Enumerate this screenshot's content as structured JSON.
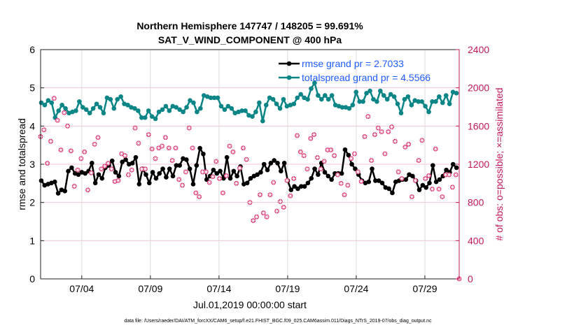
{
  "chart_data": {
    "type": "line",
    "title": [
      "Northern Hemisphere 147747 / 148205 = 99.691%",
      "SAT_V_WIND_COMPONENT @ 400 hPa"
    ],
    "xlabel": "Jul.01,2019 00:00:00 start",
    "ylabel": "rmse and totalspread",
    "ylabel_right": "# of obs: o=possible; ×=assimilated",
    "xlim_days": [
      0,
      30.5
    ],
    "ylim": [
      0,
      6
    ],
    "ylim_right": [
      0,
      2400
    ],
    "x_ticks": [
      {
        "day": 3,
        "label": "07/04"
      },
      {
        "day": 8,
        "label": "07/09"
      },
      {
        "day": 13,
        "label": "07/14"
      },
      {
        "day": 18,
        "label": "07/19"
      },
      {
        "day": 23,
        "label": "07/24"
      },
      {
        "day": 28,
        "label": "07/29"
      }
    ],
    "y_ticks": [
      "0",
      "1",
      "2",
      "3",
      "4",
      "5",
      "6"
    ],
    "y_ticks_right": [
      "0",
      "400",
      "800",
      "1200",
      "1600",
      "2000",
      "2400"
    ],
    "grid": true,
    "legend_position": "top-right",
    "footer": "data file: /Users/raeder/DAI/ATM_forcXX/CAM6_setup/f.e21.FHIST_BGC.f09_025.CAM6assim.011/Diags_NTrS_2019-07/obs_diag_output.nc",
    "colors": {
      "rmse": "#000000",
      "totalspread": "#0b8586",
      "obs": "#d81b60",
      "legend_text": "#1f5cff",
      "right_axis": "#c2185b"
    },
    "series": [
      {
        "name": "rmse",
        "legend": "rmse grand pr = 2.7033",
        "day_span": [
          0.05,
          30.3
        ],
        "values": [
          2.57,
          2.45,
          2.48,
          2.51,
          2.54,
          2.24,
          2.33,
          2.3,
          2.82,
          2.91,
          2.76,
          2.73,
          2.79,
          2.76,
          2.82,
          3.03,
          2.51,
          2.73,
          2.63,
          2.91,
          2.97,
          3.09,
          2.79,
          2.69,
          3.06,
          3.12,
          3.0,
          3.03,
          3.18,
          2.48,
          2.88,
          2.73,
          2.51,
          2.79,
          2.63,
          2.76,
          2.88,
          2.66,
          2.88,
          2.69,
          2.97,
          2.97,
          3.15,
          3.12,
          2.88,
          2.48,
          2.97,
          3.42,
          3.27,
          2.6,
          2.69,
          2.85,
          2.76,
          2.82,
          2.63,
          3.18,
          2.63,
          2.82,
          2.69,
          2.94,
          2.48,
          2.51,
          2.63,
          2.69,
          2.73,
          2.79,
          3.0,
          2.85,
          3.03,
          3.1,
          3.03,
          2.82,
          3.03,
          2.57,
          2.33,
          2.42,
          2.36,
          2.42,
          2.42,
          2.51,
          2.63,
          2.88,
          2.73,
          3.03,
          2.79,
          2.69,
          2.6,
          2.76,
          2.76,
          2.76,
          3.38,
          3.24,
          3.0,
          2.88,
          2.73,
          2.57,
          2.51,
          2.54,
          2.88,
          2.57,
          2.57,
          2.51,
          2.39,
          2.36,
          2.25,
          2.54,
          2.57,
          2.6,
          2.6,
          2.73,
          2.69,
          2.57,
          2.33,
          2.45,
          2.39,
          2.51,
          2.97,
          2.54,
          2.6,
          2.69,
          2.85,
          2.79,
          3.0,
          2.91
        ]
      },
      {
        "name": "totalspread",
        "legend": "totalspread grand pr = 4.5566",
        "day_span": [
          0.05,
          30.3
        ],
        "values": [
          4.61,
          4.55,
          4.67,
          4.61,
          4.22,
          4.4,
          4.55,
          4.46,
          4.34,
          4.37,
          4.4,
          4.64,
          4.49,
          4.43,
          4.34,
          4.46,
          4.58,
          4.49,
          4.34,
          4.74,
          4.7,
          4.46,
          4.7,
          4.77,
          4.58,
          4.55,
          4.49,
          4.46,
          4.4,
          4.22,
          4.22,
          4.4,
          4.25,
          4.19,
          4.37,
          4.43,
          4.52,
          4.4,
          4.52,
          4.49,
          4.43,
          4.37,
          4.49,
          4.67,
          4.61,
          4.37,
          4.46,
          4.8,
          4.77,
          4.74,
          4.74,
          4.74,
          4.52,
          4.43,
          4.52,
          4.46,
          4.34,
          4.37,
          4.4,
          4.4,
          4.28,
          4.25,
          4.37,
          4.61,
          4.13,
          4.55,
          4.74,
          4.7,
          4.58,
          4.46,
          4.7,
          4.52,
          4.55,
          4.58,
          4.74,
          4.83,
          4.74,
          4.7,
          4.98,
          5.13,
          4.8,
          4.7,
          4.8,
          4.7,
          4.8,
          4.55,
          4.52,
          4.49,
          4.49,
          4.46,
          4.55,
          4.89,
          4.64,
          4.64,
          4.86,
          4.92,
          4.7,
          4.64,
          4.92,
          4.8,
          4.7,
          4.83,
          4.77,
          4.58,
          4.34,
          4.7,
          4.77,
          4.55,
          4.67,
          4.64,
          4.64,
          4.52,
          4.37,
          4.64,
          4.64,
          4.77,
          4.61,
          4.8,
          4.58,
          4.89,
          4.86
        ]
      },
      {
        "name": "obs_count",
        "axis": "right",
        "day_span": [
          0.0,
          30.5
        ],
        "values": [
          1490,
          1560,
          1210,
          1440,
          1890,
          1660,
          1350,
          1740,
          1600,
          1340,
          970,
          1140,
          1260,
          1330,
          930,
          1110,
          1410,
          1480,
          1150,
          1180,
          1210,
          1150,
          1020,
          1030,
          1310,
          1290,
          1090,
          1140,
          1580,
          1420,
          1150,
          1150,
          1510,
          1360,
          1260,
          1370,
          1390,
          1480,
          1370,
          1240,
          1370,
          1040,
          980,
          1120,
          1580,
          1370,
          900,
          860,
          1120,
          1120,
          1010,
          1070,
          1230,
          1050,
          900,
          1080,
          1390,
          1330,
          1000,
          1160,
          1370,
          1250,
          800,
          610,
          650,
          880,
          690,
          650,
          880,
          1010,
          710,
          810,
          750,
          1030,
          870,
          1050,
          1500,
          1330,
          1290,
          1150,
          1470,
          1510,
          1270,
          1150,
          1230,
          1350,
          1350,
          1290,
          1090,
          1000,
          880,
          980,
          1260,
          1310,
          1120,
          1020,
          1490,
          1700,
          1240,
          1510,
          1580,
          1540,
          1310,
          1540,
          1590,
          1440,
          1120,
          1050,
          1380,
          1410,
          860,
          1030,
          1240,
          1450,
          1050,
          1080,
          940,
          1360,
          940,
          860,
          1090,
          1090,
          960,
          1090,
          0
        ]
      }
    ]
  }
}
